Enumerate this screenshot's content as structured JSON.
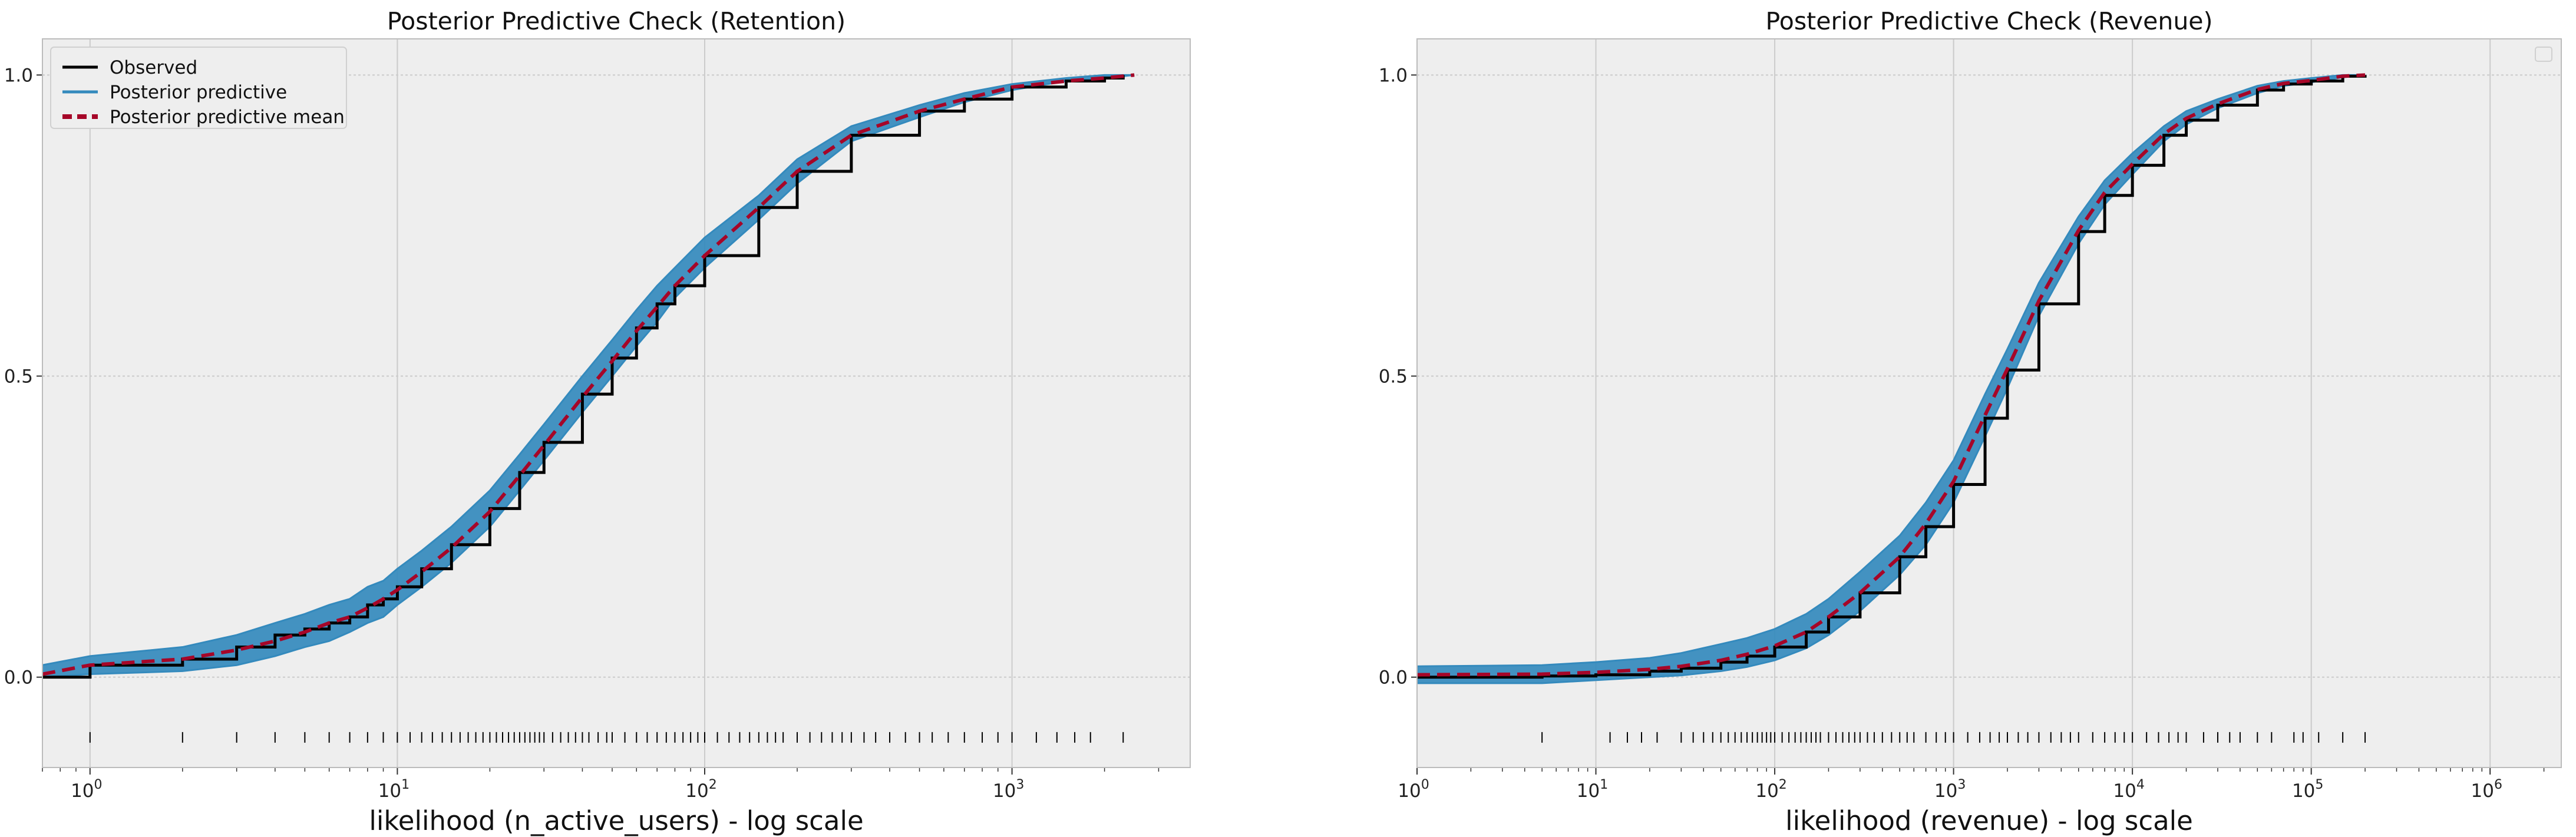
{
  "figure": {
    "background": "#ffffff",
    "axes_background": "#eeeeee",
    "grid_color": "#cccccc",
    "observed_color": "#000000",
    "predictive_color": "#348abd",
    "mean_color": "#a60628"
  },
  "chart_data": [
    {
      "type": "line",
      "title": "Posterior Predictive Check (Retention)",
      "xlabel": "likelihood (n_active_users) - log scale",
      "ylabel": "",
      "xscale": "log",
      "xlim": [
        0.7,
        3800
      ],
      "ylim": [
        -0.15,
        1.06
      ],
      "yticks": [
        0.0,
        0.5,
        1.0
      ],
      "ytick_labels": [
        "0.0",
        "0.5",
        "1.0"
      ],
      "xticks": [
        1,
        10,
        100,
        1000
      ],
      "xtick_labels": [
        "10",
        "10",
        "10",
        "10"
      ],
      "xtick_exponents": [
        "0",
        "1",
        "2",
        "3"
      ],
      "grid": true,
      "legend": {
        "placement": "upper-left",
        "entries": [
          "Observed",
          "Posterior predictive",
          "Posterior predictive mean"
        ]
      },
      "series": [
        {
          "name": "Observed",
          "kind": "ecdf-step",
          "x": [
            0.7,
            1,
            2,
            3,
            4,
            5,
            6,
            7,
            8,
            9,
            10,
            12,
            15,
            20,
            25,
            30,
            40,
            50,
            60,
            70,
            80,
            100,
            150,
            200,
            300,
            500,
            700,
            1000,
            1500,
            2000,
            2300
          ],
          "y": [
            0.0,
            0.02,
            0.03,
            0.05,
            0.07,
            0.08,
            0.09,
            0.1,
            0.12,
            0.13,
            0.15,
            0.18,
            0.22,
            0.28,
            0.34,
            0.39,
            0.47,
            0.53,
            0.58,
            0.62,
            0.65,
            0.7,
            0.78,
            0.84,
            0.9,
            0.94,
            0.96,
            0.98,
            0.99,
            0.995,
            1.0
          ]
        },
        {
          "name": "Posterior predictive",
          "kind": "band",
          "x": [
            0.7,
            1,
            2,
            3,
            4,
            5,
            6,
            7,
            8,
            9,
            10,
            12,
            15,
            20,
            25,
            30,
            40,
            50,
            60,
            70,
            80,
            100,
            150,
            200,
            300,
            500,
            700,
            1000,
            1500,
            2000,
            2500
          ],
          "lower": [
            0.0,
            0.005,
            0.01,
            0.02,
            0.035,
            0.05,
            0.06,
            0.075,
            0.09,
            0.1,
            0.12,
            0.15,
            0.19,
            0.25,
            0.31,
            0.36,
            0.44,
            0.5,
            0.55,
            0.59,
            0.63,
            0.68,
            0.76,
            0.82,
            0.89,
            0.93,
            0.955,
            0.975,
            0.99,
            0.995,
            1.0
          ],
          "upper": [
            0.02,
            0.035,
            0.05,
            0.07,
            0.09,
            0.105,
            0.12,
            0.13,
            0.15,
            0.16,
            0.18,
            0.21,
            0.25,
            0.31,
            0.37,
            0.42,
            0.5,
            0.56,
            0.61,
            0.65,
            0.68,
            0.73,
            0.8,
            0.86,
            0.915,
            0.95,
            0.97,
            0.985,
            0.995,
            1.0,
            1.0
          ]
        },
        {
          "name": "Posterior predictive mean",
          "kind": "dashed",
          "x": [
            0.7,
            1,
            2,
            3,
            4,
            5,
            6,
            7,
            8,
            9,
            10,
            12,
            15,
            20,
            25,
            30,
            40,
            50,
            60,
            70,
            80,
            100,
            150,
            200,
            300,
            500,
            700,
            1000,
            1500,
            2000,
            2500
          ],
          "y": [
            0.005,
            0.02,
            0.03,
            0.045,
            0.06,
            0.075,
            0.09,
            0.1,
            0.115,
            0.13,
            0.145,
            0.175,
            0.215,
            0.275,
            0.335,
            0.385,
            0.465,
            0.525,
            0.575,
            0.615,
            0.65,
            0.7,
            0.78,
            0.84,
            0.9,
            0.94,
            0.96,
            0.98,
            0.99,
            0.995,
            1.0
          ]
        }
      ],
      "rug": [
        1,
        2,
        3,
        4,
        5,
        6,
        7,
        8,
        9,
        10,
        11,
        12,
        13,
        14,
        15,
        16,
        17,
        18,
        19,
        20,
        21,
        22,
        23,
        24,
        25,
        26,
        27,
        28,
        29,
        30,
        32,
        34,
        36,
        38,
        40,
        42,
        45,
        48,
        50,
        55,
        60,
        65,
        70,
        75,
        80,
        85,
        90,
        95,
        100,
        110,
        120,
        130,
        140,
        150,
        160,
        170,
        180,
        200,
        220,
        240,
        260,
        280,
        300,
        330,
        360,
        400,
        450,
        500,
        550,
        620,
        700,
        800,
        900,
        1000,
        1200,
        1400,
        1600,
        1800,
        2300
      ]
    },
    {
      "type": "line",
      "title": "Posterior Predictive Check (Revenue)",
      "xlabel": "likelihood (revenue) - log scale",
      "ylabel": "",
      "xscale": "log",
      "xlim": [
        1,
        2500000
      ],
      "ylim": [
        -0.15,
        1.06
      ],
      "yticks": [
        0.0,
        0.5,
        1.0
      ],
      "ytick_labels": [
        "0.0",
        "0.5",
        "1.0"
      ],
      "xticks": [
        1,
        10,
        100,
        1000,
        10000,
        100000,
        1000000
      ],
      "xtick_labels": [
        "10",
        "10",
        "10",
        "10",
        "10",
        "10",
        "10"
      ],
      "xtick_exponents": [
        "0",
        "1",
        "2",
        "3",
        "4",
        "5",
        "6"
      ],
      "grid": true,
      "legend": {
        "placement": "upper-right",
        "entries": []
      },
      "series": [
        {
          "name": "Observed",
          "kind": "ecdf-step",
          "x": [
            1,
            5,
            10,
            20,
            30,
            50,
            70,
            100,
            150,
            200,
            300,
            500,
            700,
            1000,
            1500,
            2000,
            3000,
            5000,
            7000,
            10000,
            15000,
            20000,
            30000,
            50000,
            70000,
            100000,
            150000,
            200000
          ],
          "y": [
            0.0,
            0.002,
            0.004,
            0.01,
            0.015,
            0.025,
            0.035,
            0.05,
            0.075,
            0.1,
            0.14,
            0.2,
            0.25,
            0.32,
            0.43,
            0.51,
            0.62,
            0.74,
            0.8,
            0.85,
            0.9,
            0.925,
            0.95,
            0.975,
            0.985,
            0.99,
            0.998,
            1.0
          ]
        },
        {
          "name": "Posterior predictive",
          "kind": "band",
          "x": [
            1,
            5,
            10,
            20,
            30,
            50,
            70,
            100,
            150,
            200,
            300,
            500,
            700,
            1000,
            1500,
            2000,
            3000,
            5000,
            7000,
            10000,
            15000,
            20000,
            30000,
            50000,
            70000,
            100000,
            150000,
            200000
          ],
          "lower": [
            -0.01,
            -0.01,
            -0.005,
            0.0,
            0.003,
            0.01,
            0.017,
            0.028,
            0.048,
            0.07,
            0.11,
            0.17,
            0.22,
            0.29,
            0.4,
            0.48,
            0.6,
            0.72,
            0.785,
            0.835,
            0.89,
            0.918,
            0.945,
            0.97,
            0.982,
            0.988,
            0.996,
            1.0
          ],
          "upper": [
            0.018,
            0.02,
            0.025,
            0.032,
            0.04,
            0.055,
            0.065,
            0.08,
            0.105,
            0.13,
            0.175,
            0.235,
            0.29,
            0.36,
            0.47,
            0.545,
            0.655,
            0.765,
            0.825,
            0.87,
            0.915,
            0.94,
            0.96,
            0.982,
            0.99,
            0.995,
            1.0,
            1.0
          ]
        },
        {
          "name": "Posterior predictive mean",
          "kind": "dashed",
          "x": [
            1,
            5,
            10,
            20,
            30,
            50,
            70,
            100,
            150,
            200,
            300,
            500,
            700,
            1000,
            1500,
            2000,
            3000,
            5000,
            7000,
            10000,
            15000,
            20000,
            30000,
            50000,
            70000,
            100000,
            150000,
            200000
          ],
          "y": [
            0.004,
            0.005,
            0.008,
            0.013,
            0.018,
            0.028,
            0.038,
            0.052,
            0.075,
            0.1,
            0.14,
            0.2,
            0.255,
            0.325,
            0.435,
            0.512,
            0.625,
            0.742,
            0.805,
            0.852,
            0.902,
            0.928,
            0.952,
            0.976,
            0.986,
            0.991,
            0.998,
            1.0
          ]
        }
      ],
      "rug": [
        5,
        12,
        15,
        18,
        22,
        30,
        35,
        40,
        45,
        50,
        55,
        60,
        65,
        70,
        75,
        80,
        85,
        90,
        95,
        100,
        110,
        120,
        130,
        140,
        150,
        160,
        170,
        180,
        200,
        220,
        240,
        260,
        280,
        300,
        330,
        360,
        400,
        450,
        500,
        550,
        600,
        700,
        800,
        900,
        1000,
        1200,
        1400,
        1600,
        1800,
        2000,
        2300,
        2600,
        3000,
        3500,
        4000,
        4500,
        5000,
        6000,
        7000,
        8000,
        9000,
        10000,
        12000,
        14000,
        16000,
        18000,
        20000,
        25000,
        30000,
        35000,
        40000,
        50000,
        60000,
        80000,
        90000,
        110000,
        150000,
        200000
      ]
    }
  ]
}
